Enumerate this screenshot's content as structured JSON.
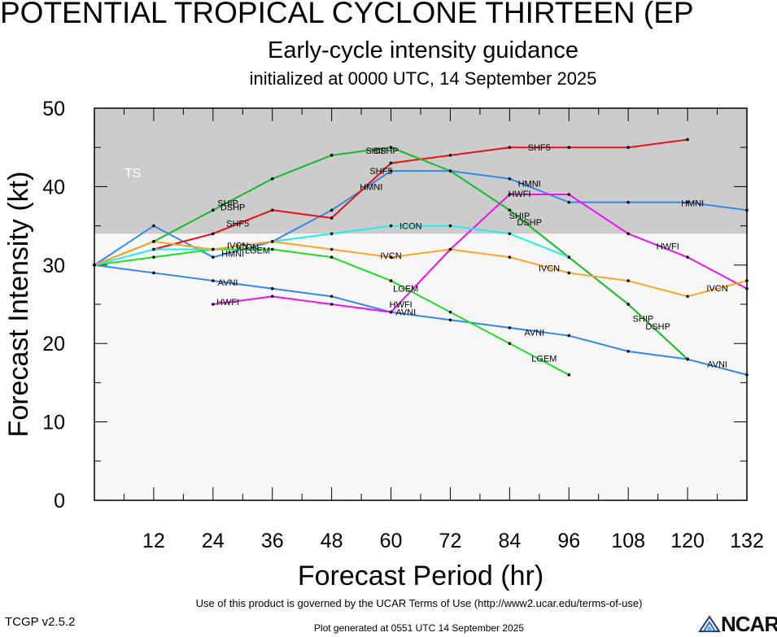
{
  "header": {
    "title": "POTENTIAL TROPICAL CYCLONE THIRTEEN (EP",
    "subtitle": "Early-cycle intensity guidance",
    "initialized": "initialized at 0000 UTC, 14 September 2025"
  },
  "footer": {
    "terms": "Use of this product is governed by the UCAR Terms of Use (http://www2.ucar.edu/terms-of-use)",
    "version": "TCGP v2.5.2",
    "generated": "Plot generated at 0551 UTC   14 September 2025",
    "logo_text": "NCAR"
  },
  "chart_data": {
    "type": "line",
    "xlabel": "Forecast Period (hr)",
    "ylabel": "Forecast Intensity (kt)",
    "xlim": [
      0,
      132
    ],
    "ylim": [
      0,
      50
    ],
    "xticks": [
      12,
      24,
      36,
      48,
      60,
      72,
      84,
      96,
      108,
      120,
      132
    ],
    "yticks": [
      0,
      10,
      20,
      30,
      40,
      50
    ],
    "bands": [
      {
        "label": "TS",
        "from": 34,
        "to": 50,
        "color": "#cccccc"
      }
    ],
    "plot_background": "#f7f7f7",
    "series": [
      {
        "name": "AVNI",
        "color": "#3388ee",
        "x": [
          0,
          12,
          24,
          36,
          48,
          60,
          72,
          84,
          96,
          108,
          120,
          132
        ],
        "y": [
          30,
          29,
          28,
          27,
          26,
          24,
          23,
          22,
          21,
          19,
          18,
          16
        ],
        "labels": [
          {
            "x": 27,
            "y": 27.8
          },
          {
            "x": 63,
            "y": 24
          },
          {
            "x": 89,
            "y": 21.4
          },
          {
            "x": 126,
            "y": 17.4
          }
        ]
      },
      {
        "name": "HMNI",
        "color": "#3388ee",
        "x": [
          0,
          12,
          24,
          36,
          48,
          60,
          72,
          84,
          96,
          108,
          120,
          132
        ],
        "y": [
          30,
          35,
          31,
          33,
          37,
          42,
          42,
          41,
          38,
          38,
          38,
          37
        ],
        "labels": [
          {
            "x": 28,
            "y": 31.5
          },
          {
            "x": 56,
            "y": 40
          },
          {
            "x": 88,
            "y": 40.4
          },
          {
            "x": 121,
            "y": 37.9
          }
        ]
      },
      {
        "name": "SHF5",
        "color": "#ee1111",
        "x": [
          12,
          24,
          36,
          48,
          60,
          72,
          84,
          96,
          108,
          120
        ],
        "y": [
          32,
          34,
          37,
          36,
          43,
          44,
          45,
          45,
          45,
          46
        ],
        "labels": [
          {
            "x": 29,
            "y": 35.3
          },
          {
            "x": 58,
            "y": 42
          },
          {
            "x": 90,
            "y": 45
          }
        ]
      },
      {
        "name": "DSHP",
        "color": "#22bb33",
        "x": [
          0,
          12,
          24,
          36,
          48,
          60,
          72,
          84,
          96,
          108,
          120
        ],
        "y": [
          30,
          33,
          37,
          41,
          44,
          45,
          42,
          37,
          31,
          25,
          18
        ],
        "labels": [
          {
            "x": 28,
            "y": 37.4
          },
          {
            "x": 59,
            "y": 44.6
          },
          {
            "x": 88,
            "y": 35.5
          },
          {
            "x": 114,
            "y": 22.2
          }
        ]
      },
      {
        "name": "SHIP",
        "color": "#22bb33",
        "x": [
          0,
          12,
          24,
          36,
          48,
          60,
          72,
          84,
          96,
          108,
          120
        ],
        "y": [
          30,
          33,
          37,
          41,
          44,
          45,
          42,
          37,
          31,
          25,
          18
        ],
        "labels": [
          {
            "x": 27,
            "y": 37.9
          },
          {
            "x": 57,
            "y": 44.6
          },
          {
            "x": 86,
            "y": 36.3
          },
          {
            "x": 111,
            "y": 23.2
          }
        ]
      },
      {
        "name": "LGEM",
        "color": "#22dd22",
        "x": [
          0,
          12,
          24,
          36,
          48,
          60,
          72,
          84,
          96
        ],
        "y": [
          30,
          31,
          32,
          32,
          31,
          28,
          24,
          20,
          16
        ],
        "labels": [
          {
            "x": 33,
            "y": 31.9
          },
          {
            "x": 63,
            "y": 27
          },
          {
            "x": 91,
            "y": 18.1
          }
        ]
      },
      {
        "name": "HWFI",
        "color": "#ee11ee",
        "x": [
          24,
          36,
          48,
          60,
          72,
          84,
          96,
          108,
          120,
          132
        ],
        "y": [
          25,
          26,
          25,
          24,
          32,
          39,
          39,
          34,
          31,
          27
        ],
        "labels": [
          {
            "x": 27,
            "y": 25.3
          },
          {
            "x": 62,
            "y": 25
          },
          {
            "x": 86,
            "y": 39.1
          },
          {
            "x": 116,
            "y": 32.4
          }
        ]
      },
      {
        "name": "ICON",
        "color": "#22eeee",
        "x": [
          0,
          12,
          24,
          36,
          48,
          60,
          72,
          84,
          96
        ],
        "y": [
          30,
          32,
          32,
          33,
          34,
          35,
          35,
          34,
          31
        ],
        "labels": [
          {
            "x": 31,
            "y": 32.3
          },
          {
            "x": 64,
            "y": 35
          }
        ]
      },
      {
        "name": "IVCN",
        "color": "#ffa322",
        "x": [
          0,
          12,
          24,
          36,
          48,
          60,
          72,
          84,
          96,
          108,
          120,
          132
        ],
        "y": [
          30,
          33,
          32,
          33,
          32,
          31,
          32,
          31,
          29,
          28,
          26,
          28
        ],
        "labels": [
          {
            "x": 29,
            "y": 32.5
          },
          {
            "x": 60,
            "y": 31.2
          },
          {
            "x": 92,
            "y": 29.6
          },
          {
            "x": 126,
            "y": 27.1
          }
        ]
      }
    ]
  }
}
